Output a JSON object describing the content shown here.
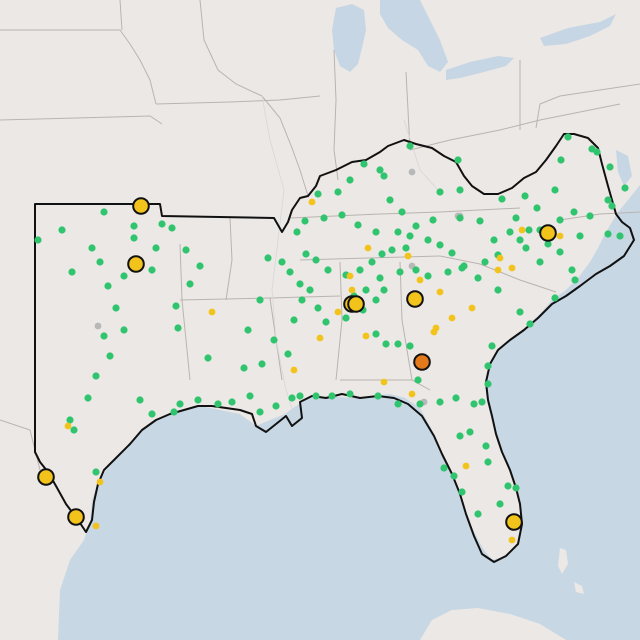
{
  "map": {
    "colors": {
      "water": "#c6d6e4",
      "land": "#ede9e6",
      "region_border": "#111111",
      "state_border": "#b9b4b0",
      "green": "#2fc46d",
      "yellow": "#f2c31b",
      "gray": "#b8b8b8",
      "orange": "#e27a1c"
    },
    "legend_categories": [
      "green",
      "yellow",
      "gray",
      "orange"
    ],
    "note": ""
  }
}
